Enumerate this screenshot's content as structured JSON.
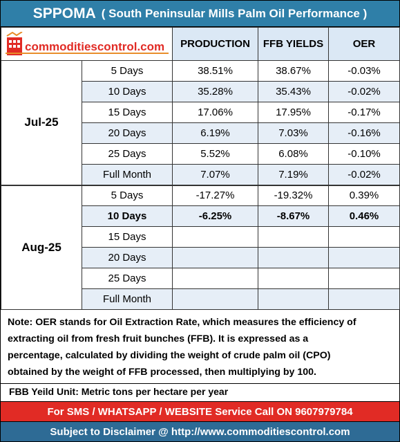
{
  "header": {
    "ticker": "SPPOMA",
    "subtitle": "( South Peninsular Mills Palm Oil Performance )"
  },
  "logo": {
    "text": "commoditiescontrol.com",
    "icon": "chart-building-logo-icon"
  },
  "columns": {
    "production": "PRODUCTION",
    "ffb_yields": "FFB YIELDS",
    "oer": "OER"
  },
  "colors": {
    "title_bg": "#2f7fa8",
    "header_bg": "#dbe8f5",
    "alt_row_bg": "#e6eef7",
    "contact_bg": "#e12b25",
    "disclaimer_bg": "#2e6b95"
  },
  "groups": [
    {
      "month": "Jul-25",
      "rows": [
        {
          "period": "5 Days",
          "production": "38.51%",
          "ffb": "38.67%",
          "oer": "-0.03%"
        },
        {
          "period": "10 Days",
          "production": "35.28%",
          "ffb": "35.43%",
          "oer": "-0.02%"
        },
        {
          "period": "15 Days",
          "production": "17.06%",
          "ffb": "17.95%",
          "oer": "-0.17%"
        },
        {
          "period": "20 Days",
          "production": "6.19%",
          "ffb": "7.03%",
          "oer": "-0.16%"
        },
        {
          "period": "25 Days",
          "production": "5.52%",
          "ffb": "6.08%",
          "oer": "-0.10%"
        },
        {
          "period": "Full Month",
          "production": "7.07%",
          "ffb": "7.19%",
          "oer": "-0.02%"
        }
      ]
    },
    {
      "month": "Aug-25",
      "rows": [
        {
          "period": "5 Days",
          "production": "-17.27%",
          "ffb": "-19.32%",
          "oer": "0.39%"
        },
        {
          "period": "10 Days",
          "production": "-6.25%",
          "ffb": "-8.67%",
          "oer": "0.46%"
        },
        {
          "period": "15 Days",
          "production": "",
          "ffb": "",
          "oer": ""
        },
        {
          "period": "20 Days",
          "production": "",
          "ffb": "",
          "oer": ""
        },
        {
          "period": "25 Days",
          "production": "",
          "ffb": "",
          "oer": ""
        },
        {
          "period": "Full Month",
          "production": "",
          "ffb": "",
          "oer": ""
        }
      ]
    }
  ],
  "note": {
    "line1": "Note: OER stands for Oil Extraction Rate, which measures the efficiency of",
    "line2": "extracting oil from fresh fruit bunches (FFB). It is expressed as a",
    "line3": "percentage, calculated by dividing the weight of crude palm oil (CPO)",
    "line4": "obtained by the weight of FFB processed, then multiplying by 100."
  },
  "unit_text": "FBB Yeild Unit: Metric tons per hectare per year",
  "contact_text": "For SMS / WHATSAPP / WEBSITE Service Call  ON  9607979784",
  "disclaimer_text": "Subject to Disclaimer @  http://www.commoditiescontrol.com"
}
